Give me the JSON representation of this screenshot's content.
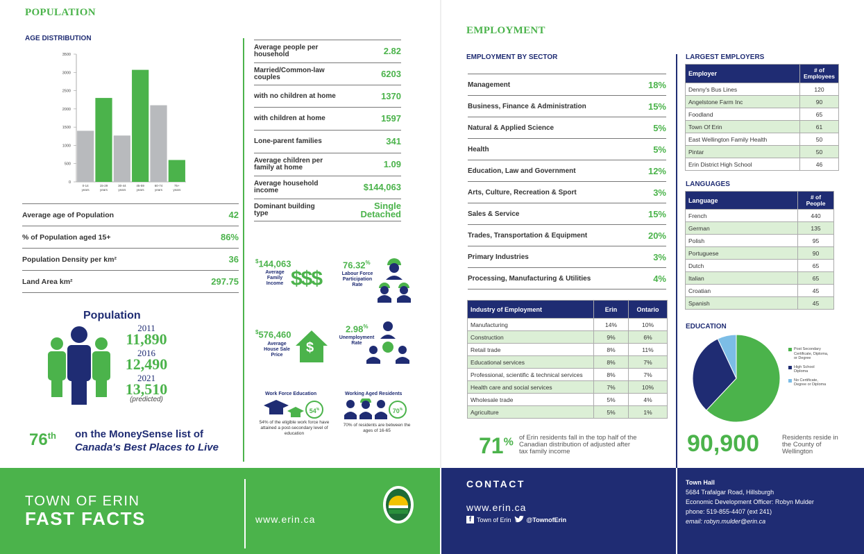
{
  "population": {
    "title": "POPULATION",
    "age_title": "AGE DISTRIBUTION",
    "stats": [
      {
        "label": "Average age of Population",
        "value": "42"
      },
      {
        "label": "% of Population aged 15+",
        "value": "86%"
      },
      {
        "label": "Population Density per km²",
        "value": "36"
      },
      {
        "label": "Land Area km²",
        "value": "297.75"
      }
    ],
    "household": [
      {
        "label": "Average people per household",
        "value": "2.82"
      },
      {
        "label": "Married/Common-law couples",
        "value": "6203"
      },
      {
        "label": "with no children at home",
        "value": "1370"
      },
      {
        "label": "with children at home",
        "value": "1597"
      },
      {
        "label": "Lone-parent families",
        "value": "341"
      },
      {
        "label": "Average children per family at home",
        "value": "1.09"
      },
      {
        "label": "Average household income",
        "value": "$144,063"
      },
      {
        "label": "Dominant building type",
        "value": "Single Detached"
      }
    ],
    "pop_title": "Population",
    "years": [
      {
        "year": "2011",
        "value": "11,890"
      },
      {
        "year": "2016",
        "value": "12,490"
      },
      {
        "year": "2021",
        "value": "13,510"
      }
    ],
    "predicted": "(predicted)",
    "rank": "76",
    "rank_suffix": "th",
    "rank_line1": "on the MoneySense list of",
    "rank_line2": "Canada's Best Places to Live"
  },
  "infographic": {
    "family_income_value": "144,063",
    "family_income_label": "Average Family Income",
    "labour_value": "76.32",
    "labour_label": "Labour Force Participation Rate",
    "house_value": "576,460",
    "house_label": "Average House Sale Price",
    "unemp_value": "2.98",
    "unemp_label": "Unemployment Rate",
    "dollar_sign": "$",
    "pct_sign": "%",
    "dollars_icon_text": "$$$",
    "house_icon_text": "$",
    "work_title": "Work Force Education",
    "work_pct": "54",
    "work_text": "54% of the eligible work force have attained a post-secondary level of education",
    "aged_title": "Working Aged Residents",
    "aged_pct": "70",
    "aged_text": "70% of residents are between the ages of 16-65"
  },
  "chart_data": {
    "type": "bar",
    "categories": [
      "0-14 years",
      "15-29 years",
      "30-44 years",
      "45-59 years",
      "60-74 years",
      "75+ years"
    ],
    "values": [
      1400,
      2300,
      1270,
      3070,
      2100,
      600
    ],
    "colors": [
      "#b8babd",
      "#4bb34b",
      "#b8babd",
      "#4bb34b",
      "#b8babd",
      "#4bb34b"
    ],
    "ylim": [
      0,
      3500
    ],
    "yticks": [
      "3500",
      "3000",
      "2500",
      "2000",
      "1500",
      "1000",
      "500",
      "0"
    ],
    "cat_line1": [
      "0-14",
      "15-29",
      "30-44",
      "45-59",
      "60-74",
      "75+"
    ],
    "cat_line2": [
      "years",
      "years",
      "years",
      "years",
      "years",
      "years"
    ]
  },
  "employment": {
    "title": "EMPLOYMENT",
    "sector_title": "EMPLOYMENT BY SECTOR",
    "sectors": [
      {
        "label": "Management",
        "value": "18%"
      },
      {
        "label": "Business, Finance & Administration",
        "value": "15%"
      },
      {
        "label": "Natural & Applied Science",
        "value": "5%"
      },
      {
        "label": "Health",
        "value": "5%"
      },
      {
        "label": "Education, Law and Government",
        "value": "12%"
      },
      {
        "label": "Arts, Culture, Recreation & Sport",
        "value": "3%"
      },
      {
        "label": "Sales & Service",
        "value": "15%"
      },
      {
        "label": "Trades, Transportation & Equipment",
        "value": "20%"
      },
      {
        "label": "Primary Industries",
        "value": "3%"
      },
      {
        "label": "Processing, Manufacturing & Utilities",
        "value": "4%"
      }
    ],
    "industry_headers": [
      "Industry of Employment",
      "Erin",
      "Ontario"
    ],
    "industry_rows": [
      [
        "Manufacturing",
        "14%",
        "10%"
      ],
      [
        "Construction",
        "9%",
        "6%"
      ],
      [
        "Retail trade",
        "8%",
        "11%"
      ],
      [
        "Educational services",
        "8%",
        "7%"
      ],
      [
        "Professional, scientific & technical services",
        "8%",
        "7%"
      ],
      [
        "Health care and social services",
        "7%",
        "10%"
      ],
      [
        "Wholesale trade",
        "5%",
        "4%"
      ],
      [
        "Agriculture",
        "5%",
        "1%"
      ]
    ],
    "income_pct": "71",
    "income_pct_sign": "%",
    "income_text": "of Erin residents fall in the top half of the Canadian distribution of adjusted after tax family income"
  },
  "employers": {
    "title": "LARGEST EMPLOYERS",
    "headers": [
      "Employer",
      "# of Employees"
    ],
    "rows": [
      [
        "Denny's Bus Lines",
        "120"
      ],
      [
        "Angelstone Farm Inc",
        "90"
      ],
      [
        "Foodland",
        "65"
      ],
      [
        "Town Of Erin",
        "61"
      ],
      [
        "East Wellington Family Health",
        "50"
      ],
      [
        "Pintar",
        "50"
      ],
      [
        "Erin District High School",
        "46"
      ]
    ]
  },
  "languages": {
    "title": "LANGUAGES",
    "headers": [
      "Language",
      "# of People"
    ],
    "rows": [
      [
        "French",
        "440"
      ],
      [
        "German",
        "135"
      ],
      [
        "Polish",
        "95"
      ],
      [
        "Portuguese",
        "90"
      ],
      [
        "Dutch",
        "65"
      ],
      [
        "Italian",
        "65"
      ],
      [
        "Croatian",
        "45"
      ],
      [
        "Spanish",
        "45"
      ]
    ]
  },
  "education": {
    "title": "EDUCATION",
    "pie_values": [
      0.62,
      0.31,
      0.07
    ],
    "pie_colors": [
      "#4bb34b",
      "#1f2c73",
      "#7cbde6"
    ],
    "legend": [
      "Post Secondary Certificate, Diploma, or Degree",
      "High School Diploma",
      "No Certificate, Degree or Diploma"
    ],
    "residents_value": "90,900",
    "residents_text": "Residents reside in the County of Wellington"
  },
  "footer": {
    "town_line1": "TOWN OF ERIN",
    "town_line2": "FAST FACTS",
    "website": "www.erin.ca",
    "contact_title": "CONTACT",
    "contact_website": "www.erin.ca",
    "facebook": "Town of Erin",
    "twitter": "@TownofErin",
    "town_hall_title": "Town Hall",
    "address": "5684 Trafalgar Road, Hillsburgh",
    "officer": "Economic Development Officer: Robyn Mulder",
    "phone": "phone: 519-855-4407 (ext 241)",
    "email": "email: robyn.mulder@erin.ca"
  },
  "colors": {
    "green": "#4bb34b",
    "navy": "#1f2c73",
    "gray": "#b8babd",
    "light_green": "#dcefd6"
  }
}
